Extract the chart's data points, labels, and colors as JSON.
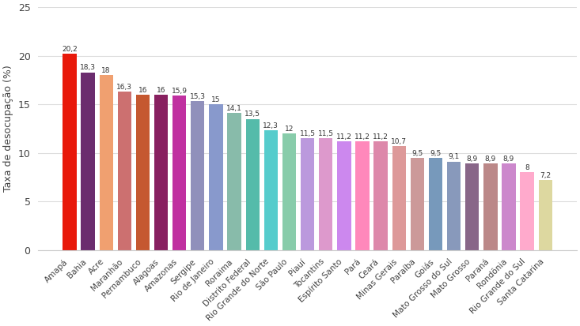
{
  "categories": [
    "Amapá",
    "Bahia",
    "Acre",
    "Maranhão",
    "Pernambuco",
    "Alagoas",
    "Amazonas",
    "Sergipe",
    "Rio de Janeiro",
    "Roraima",
    "Distrito Federal",
    "Rio Grande do Norte",
    "São Paulo",
    "Piauí",
    "Tocantins",
    "Espírito Santo",
    "Pará",
    "Ceará",
    "Minas Gerais",
    "Paraíba",
    "Goiás",
    "Mato Grosso do Sul",
    "Mato Grosso",
    "Paraná",
    "Rondônia",
    "Rio Grande do Sul",
    "Santa Catarina"
  ],
  "values": [
    20.2,
    18.3,
    18.0,
    16.3,
    16.0,
    16.0,
    15.9,
    15.3,
    15.0,
    14.1,
    13.5,
    12.3,
    12.0,
    11.5,
    11.5,
    11.2,
    11.2,
    11.2,
    10.7,
    9.5,
    9.5,
    9.1,
    8.9,
    8.9,
    8.9,
    8.0,
    7.2
  ],
  "labels": [
    "20,2",
    "18,3",
    "18",
    "16,3",
    "16",
    "16",
    "15,9",
    "15,3",
    "15",
    "14,1",
    "13,5",
    "12,3",
    "12",
    "11,5",
    "11,5",
    "11,2",
    "11,2",
    "11,2",
    "10,7",
    "9,5",
    "9,5",
    "9,1",
    "8,9",
    "8,9",
    "8,9",
    "8",
    "7,2"
  ],
  "colors": [
    "#e8190a",
    "#6b2c6e",
    "#f0a070",
    "#cc7070",
    "#c55830",
    "#882060",
    "#c030a0",
    "#9090bb",
    "#8899cc",
    "#88bbaa",
    "#55bbaa",
    "#55cccc",
    "#88ccaa",
    "#bb99dd",
    "#dd99cc",
    "#cc88ee",
    "#ff88bb",
    "#dd88aa",
    "#dd9999",
    "#cc9999",
    "#7799bb",
    "#8899bb",
    "#886688",
    "#bb8888",
    "#cc88cc",
    "#ffaacc",
    "#ddd8a0"
  ],
  "ylabel": "Taxa de desocupação (%)",
  "ylim": [
    0,
    25
  ],
  "yticks": [
    0,
    5,
    10,
    15,
    20,
    25
  ],
  "label_fontsize": 6.5,
  "tick_fontsize": 7.5,
  "bar_width": 0.75
}
